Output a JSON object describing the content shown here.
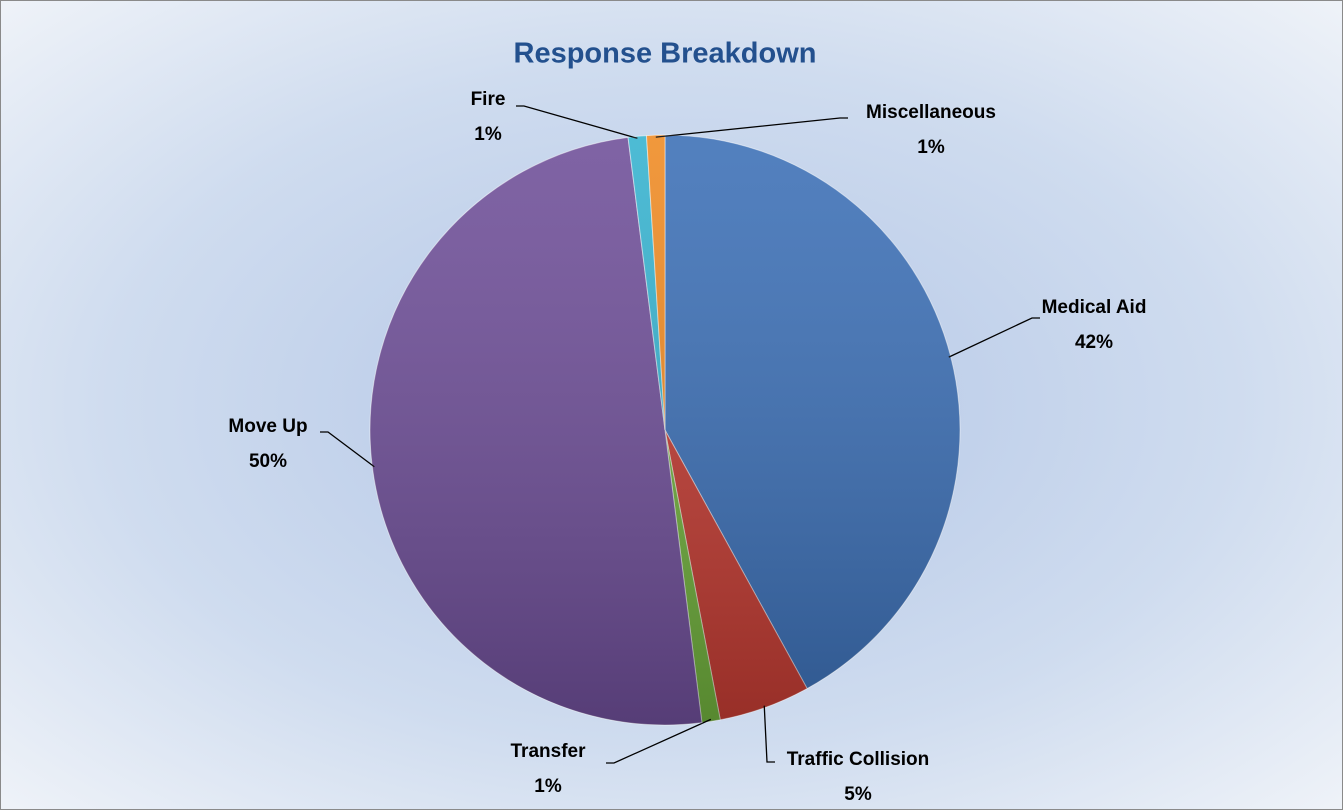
{
  "chart_data": {
    "type": "pie",
    "title": "Response Breakdown",
    "categories": [
      "Medical Aid",
      "Traffic Collision",
      "Transfer",
      "Move Up",
      "Fire",
      "Miscellaneous"
    ],
    "values": [
      42,
      5,
      1,
      50,
      1,
      1
    ],
    "value_labels": [
      "42%",
      "5%",
      "1%",
      "50%",
      "1%",
      "1%"
    ],
    "colors": [
      "#3b6fb6",
      "#c23b32",
      "#6fae3c",
      "#6e4e98",
      "#35b2cf",
      "#ef8a22"
    ]
  }
}
